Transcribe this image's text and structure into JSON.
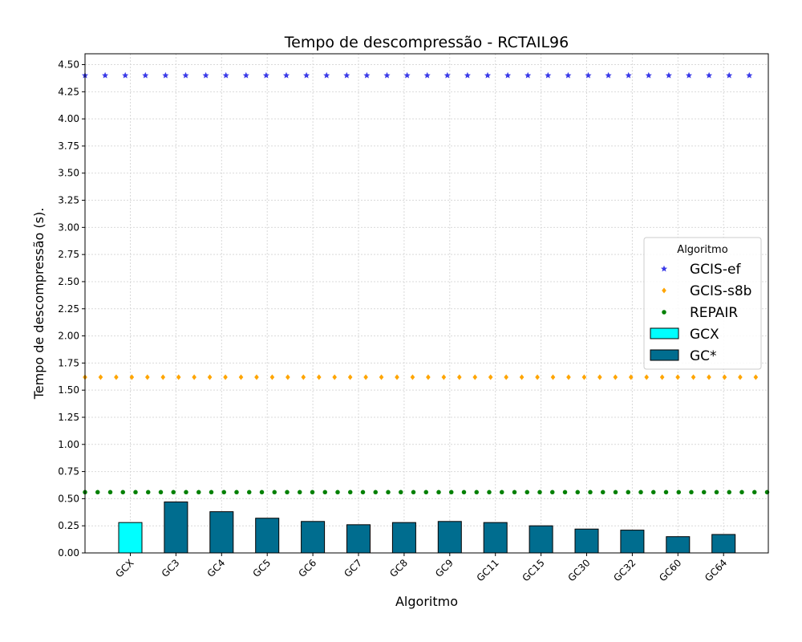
{
  "chart_data": {
    "type": "bar",
    "title": "Tempo de descompressão -  RCTAIL96",
    "xlabel": "Algoritmo",
    "ylabel": "Tempo de descompressão (s).",
    "ylim": [
      0,
      4.6
    ],
    "yticks": [
      "0.00",
      "0.25",
      "0.50",
      "0.75",
      "1.00",
      "1.25",
      "1.50",
      "1.75",
      "2.00",
      "2.25",
      "2.50",
      "2.75",
      "3.00",
      "3.25",
      "3.50",
      "3.75",
      "4.00",
      "4.25",
      "4.50"
    ],
    "grid": true,
    "legend_position": "center-right",
    "categories": [
      "GCX",
      "GC3",
      "GC4",
      "GC5",
      "GC6",
      "GC7",
      "GC8",
      "GC9",
      "GC11",
      "GC15",
      "GC30",
      "GC32",
      "GC60",
      "GC64"
    ],
    "bars": {
      "values": [
        0.28,
        0.47,
        0.38,
        0.32,
        0.29,
        0.26,
        0.28,
        0.29,
        0.28,
        0.25,
        0.22,
        0.21,
        0.15,
        0.17
      ],
      "series_of_each": [
        "GCX",
        "GC*",
        "GC*",
        "GC*",
        "GC*",
        "GC*",
        "GC*",
        "GC*",
        "GC*",
        "GC*",
        "GC*",
        "GC*",
        "GC*",
        "GC*"
      ]
    },
    "reference_lines": [
      {
        "name": "GCIS-ef",
        "value": 4.4,
        "marker": "star",
        "color": "#3a3ae8"
      },
      {
        "name": "GCIS-s8b",
        "value": 1.62,
        "marker": "diamond",
        "color": "#ffa500"
      },
      {
        "name": "REPAIR",
        "value": 0.56,
        "marker": "circle",
        "color": "#008000"
      }
    ],
    "legend": {
      "title": "Algoritmo",
      "entries": [
        {
          "name": "GCIS-ef",
          "kind": "star",
          "color": "#3a3ae8"
        },
        {
          "name": "GCIS-s8b",
          "kind": "diamond",
          "color": "#ffa500"
        },
        {
          "name": "REPAIR",
          "kind": "circle",
          "color": "#008000"
        },
        {
          "name": "GCX",
          "kind": "patch",
          "color": "#00ffff"
        },
        {
          "name": "GC*",
          "kind": "patch",
          "color": "#006d8f"
        }
      ]
    },
    "bar_colors": {
      "GCX": "#00ffff",
      "GC*": "#006d8f"
    }
  }
}
